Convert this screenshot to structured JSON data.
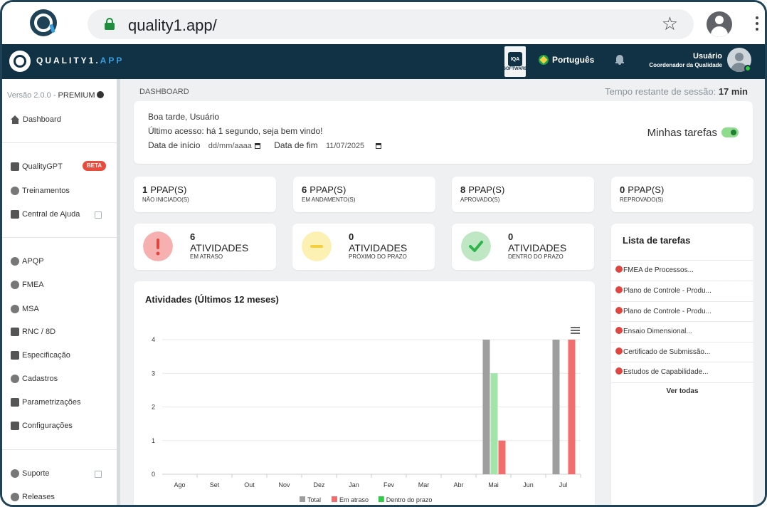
{
  "browser": {
    "url": "quality1.app/",
    "site_icon": "quality1-logo-icon",
    "star_icon": "☆"
  },
  "header": {
    "brand_main": "QUALITY1.",
    "brand_accent": "APP",
    "badge_top": "IQA",
    "badge_bottom": "SOFTWARE",
    "language": "Português",
    "user_name": "Usuário",
    "user_role": "Coordenador da Qualidade",
    "colors": {
      "bar": "#113244",
      "accent": "#3aa0e0",
      "online": "#2ecc40"
    }
  },
  "sidebar": {
    "version_text": "Versão 2.0.0 - ",
    "plan": "PREMIUM",
    "beta_label": "BETA",
    "items": [
      {
        "label": "Dashboard",
        "icon": "home-icon"
      },
      {
        "label": "QualityGPT",
        "icon": "robot-icon"
      },
      {
        "label": "Treinamentos",
        "icon": "badge-icon"
      },
      {
        "label": "Central de Ajuda",
        "icon": "book-icon"
      },
      {
        "label": "APQP",
        "icon": "globe-icon"
      },
      {
        "label": "FMEA",
        "icon": "brain-icon"
      },
      {
        "label": "MSA",
        "icon": "gauge-icon"
      },
      {
        "label": "RNC / 8D",
        "icon": "layers-icon"
      },
      {
        "label": "Especificação",
        "icon": "list-icon"
      },
      {
        "label": "Cadastros",
        "icon": "plus-circle-icon"
      },
      {
        "label": "Parametrizações",
        "icon": "sliders-icon"
      },
      {
        "label": "Configurações",
        "icon": "tools-icon"
      },
      {
        "label": "Suporte",
        "icon": "question-icon"
      },
      {
        "label": "Releases",
        "icon": "cog-icon"
      }
    ]
  },
  "main": {
    "breadcrumb": "DASHBOARD",
    "session_label": "Tempo restante de sessão: ",
    "session_value": "17 min",
    "greeting": "Boa tarde, Usuário",
    "last_access": "Último acesso: há 1 segundo, seja bem vindo!",
    "start_label": "Data de início",
    "start_value": "dd/mm/aaaa",
    "end_label": "Data de fim",
    "end_value": "11/07/2025",
    "my_tasks_label": "Minhas tarefas",
    "my_tasks_on": true
  },
  "ppap": [
    {
      "count": "1",
      "unit": "PPAP(S)",
      "status": "NÃO INICIADO(S)"
    },
    {
      "count": "6",
      "unit": "PPAP(S)",
      "status": "EM ANDAMENTO(S)"
    },
    {
      "count": "8",
      "unit": "PPAP(S)",
      "status": "APROVADO(S)"
    },
    {
      "count": "0",
      "unit": "PPAP(S)",
      "status": "REPROVADO(S)"
    }
  ],
  "activities": [
    {
      "count": "6",
      "title": "ATIVIDADES",
      "status": "EM ATRASO",
      "icon": "exclamation-icon",
      "color": "#f7b0b0",
      "icon_color": "#e0453f",
      "glyph": "!"
    },
    {
      "count": "0",
      "title": "ATIVIDADES",
      "status": "PRÓXIMO DO PRAZO",
      "icon": "minus-icon",
      "color": "#fdf0b3",
      "icon_color": "#f4d03f",
      "glyph": "–"
    },
    {
      "count": "0",
      "title": "ATIVIDADES",
      "status": "DENTRO DO PRAZO",
      "icon": "check-icon",
      "color": "#bfe7c4",
      "icon_color": "#2fb34a",
      "glyph": "✓"
    }
  ],
  "tasks": {
    "title": "Lista de tarefas",
    "items": [
      "FMEA de Processos...",
      "Plano de Controle - Produ...",
      "Plano de Controle - Produ...",
      "Ensaio Dimensional...",
      "Certificado de Submissão...",
      "Estudos de Capabilidade..."
    ],
    "see_all": "Ver todas"
  },
  "chart_data": {
    "type": "bar",
    "title": "Atividades (Últimos 12 meses)",
    "categories": [
      "Ago",
      "Set",
      "Out",
      "Nov",
      "Dez",
      "Jan",
      "Fev",
      "Mar",
      "Abr",
      "Mai",
      "Jun",
      "Jul"
    ],
    "series": [
      {
        "name": "Total",
        "color": "#9e9e9e",
        "values": [
          0,
          0,
          0,
          0,
          0,
          0,
          0,
          0,
          0,
          4,
          0,
          4
        ]
      },
      {
        "name": "Dentro do prazo",
        "color": "#a3e4a9",
        "values": [
          0,
          0,
          0,
          0,
          0,
          0,
          0,
          0,
          0,
          3,
          0,
          0
        ]
      },
      {
        "name": "Em atraso",
        "color": "#f26d6d",
        "values": [
          0,
          0,
          0,
          0,
          0,
          0,
          0,
          0,
          0,
          1,
          0,
          4
        ]
      }
    ],
    "legend": [
      {
        "name": "Total",
        "color": "#9e9e9e"
      },
      {
        "name": "Em atraso",
        "color": "#f26d6d"
      },
      {
        "name": "Dentro do prazo",
        "color": "#2fcc47"
      }
    ],
    "yticks": [
      "0",
      "1",
      "2",
      "3",
      "4"
    ],
    "ylim": [
      0,
      4
    ],
    "grid": true,
    "legend_position": "bottom"
  }
}
